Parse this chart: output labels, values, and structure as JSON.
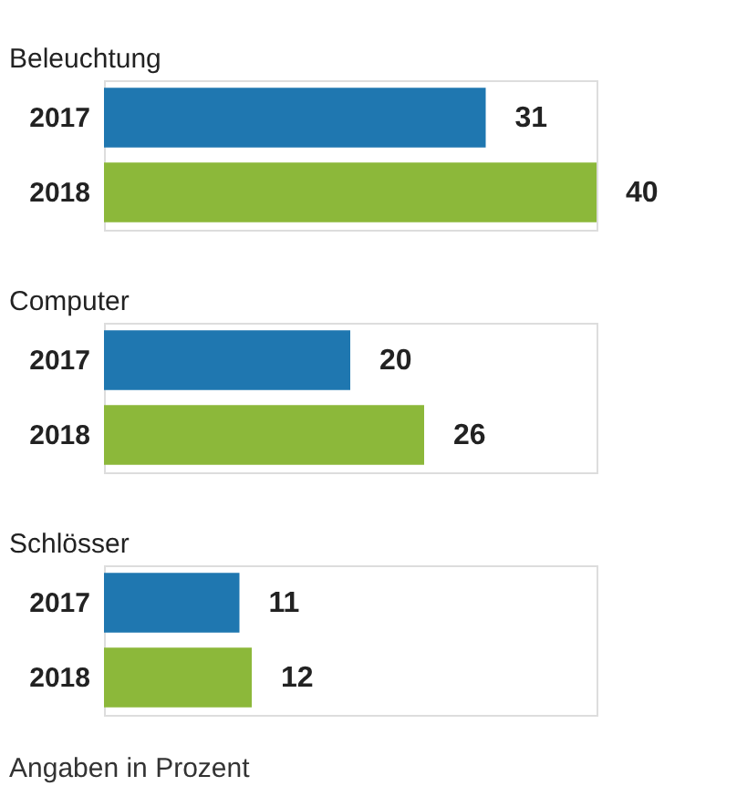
{
  "chart_data": [
    {
      "type": "bar",
      "orientation": "horizontal",
      "title": "Beleuchtung",
      "categories": [
        "2017",
        "2018"
      ],
      "values": [
        31,
        40
      ],
      "colors": [
        "#1f77b0",
        "#8cb83a"
      ],
      "data_labels": true
    },
    {
      "type": "bar",
      "orientation": "horizontal",
      "title": "Computer",
      "categories": [
        "2017",
        "2018"
      ],
      "values": [
        20,
        26
      ],
      "colors": [
        "#1f77b0",
        "#8cb83a"
      ],
      "data_labels": true
    },
    {
      "type": "bar",
      "orientation": "horizontal",
      "title": "Schlösser",
      "categories": [
        "2017",
        "2018"
      ],
      "values": [
        11,
        12
      ],
      "colors": [
        "#1f77b0",
        "#8cb83a"
      ],
      "data_labels": true,
      "annotations": [
        "Angaben in Prozent"
      ]
    }
  ]
}
